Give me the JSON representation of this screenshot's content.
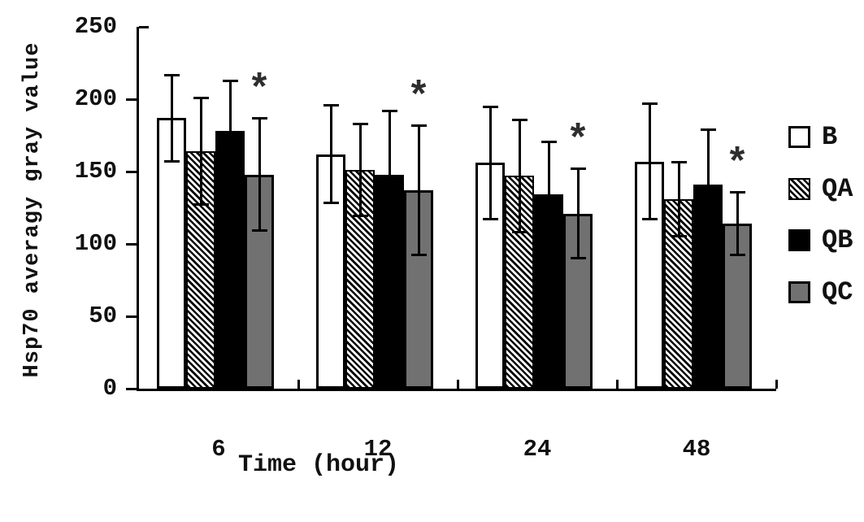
{
  "chart_data": {
    "type": "bar",
    "title": "",
    "xlabel": "Time (hour)",
    "ylabel": "Hsp70 averagy gray value",
    "categories": [
      "6",
      "12",
      "24",
      "48"
    ],
    "series": [
      {
        "name": "B",
        "style": "white",
        "values": [
          187,
          162,
          156,
          157
        ],
        "errors": [
          30,
          34,
          39,
          40
        ]
      },
      {
        "name": "QA",
        "style": "hatch",
        "values": [
          164,
          151,
          147,
          131
        ],
        "errors": [
          37,
          32,
          39,
          26
        ]
      },
      {
        "name": "QB",
        "style": "black",
        "values": [
          178,
          148,
          134,
          141
        ],
        "errors": [
          35,
          44,
          37,
          38
        ]
      },
      {
        "name": "QC",
        "style": "gray",
        "values": [
          148,
          137,
          121,
          114
        ],
        "errors": [
          39,
          45,
          31,
          22
        ]
      }
    ],
    "ylim": [
      0,
      250
    ],
    "yticks": [
      0,
      50,
      100,
      150,
      200,
      250
    ],
    "grid": false,
    "error_bars": true,
    "legend_position": "right",
    "legend_labels": [
      "B",
      "QA",
      "QB",
      "QC"
    ],
    "significance": {
      "symbol": "*",
      "series": "QC",
      "categories": [
        "6",
        "12",
        "24",
        "48"
      ]
    }
  },
  "colors": {
    "ink": "#000000",
    "bar_gray": "#717171",
    "asterisk": "#2e2e2e",
    "background": "#ffffff"
  }
}
